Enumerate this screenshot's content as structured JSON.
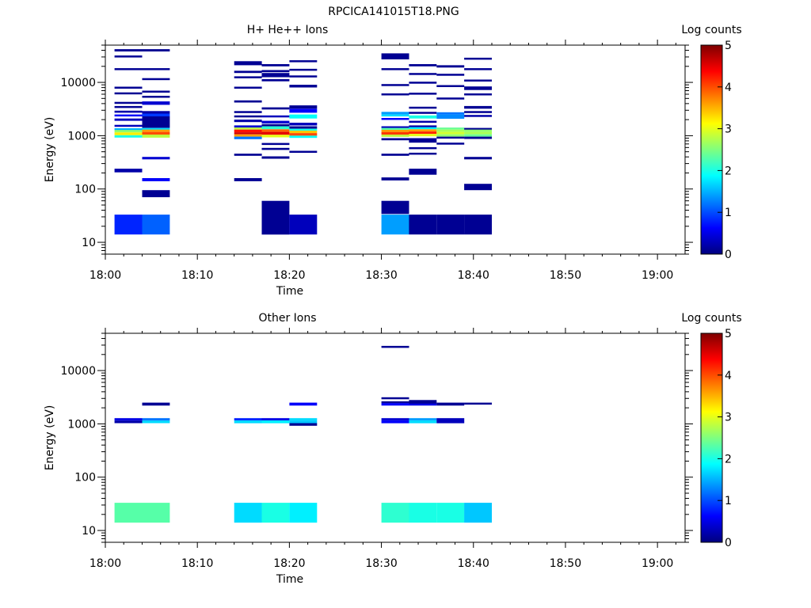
{
  "title": "RPCICA141015T18.PNG",
  "colormap": {
    "stops": [
      "#00007f",
      "#0000ff",
      "#007fff",
      "#00ffff",
      "#7fff7f",
      "#ffff00",
      "#ff7f00",
      "#ff0000",
      "#7f0000"
    ]
  },
  "chart_data": [
    {
      "type": "heatmap",
      "title": "H+ He++ Ions",
      "xlabel": "Time",
      "ylabel": "Energy (eV)",
      "xlim": [
        "18:00",
        "19:03"
      ],
      "ylim": [
        6,
        50000
      ],
      "yscale": "log",
      "x_ticks": [
        "18:00",
        "18:10",
        "18:20",
        "18:30",
        "18:40",
        "18:50",
        "19:00"
      ],
      "y_ticks": [
        "10",
        "100",
        "1000",
        "10000"
      ],
      "colorbar": {
        "label": "Log counts",
        "range": [
          0,
          5
        ],
        "ticks": [
          "0",
          "1",
          "2",
          "3",
          "4",
          "5"
        ]
      },
      "time_bins": [
        [
          "18:01",
          "18:04"
        ],
        [
          "18:04",
          "18:07"
        ],
        [
          "18:14",
          "18:17"
        ],
        [
          "18:17",
          "18:20"
        ],
        [
          "18:20",
          "18:23"
        ],
        [
          "18:30",
          "18:33"
        ],
        [
          "18:33",
          "18:36"
        ],
        [
          "18:36",
          "18:39"
        ],
        [
          "18:39",
          "18:42"
        ]
      ],
      "cells": [
        [
          0,
          38000,
          42000,
          0.1
        ],
        [
          0,
          30000,
          32000,
          0.1
        ],
        [
          0,
          17000,
          18500,
          0.1
        ],
        [
          0,
          7700,
          8300,
          0.1
        ],
        [
          0,
          6000,
          6500,
          0.1
        ],
        [
          0,
          4000,
          4300,
          0.1
        ],
        [
          0,
          3300,
          3600,
          0.1
        ],
        [
          0,
          2700,
          2950,
          0.2
        ],
        [
          0,
          2300,
          2500,
          0.6
        ],
        [
          0,
          1900,
          2100,
          0.3
        ],
        [
          0,
          1500,
          1600,
          0.3
        ],
        [
          0,
          1280,
          1380,
          1.5
        ],
        [
          0,
          1150,
          1280,
          2.6
        ],
        [
          0,
          1020,
          1150,
          3.2
        ],
        [
          0,
          920,
          1020,
          2.0
        ],
        [
          0,
          205,
          240,
          0.2
        ],
        [
          0,
          14,
          33,
          0.8
        ],
        [
          1,
          38000,
          42000,
          0.1
        ],
        [
          1,
          17000,
          18500,
          0.1
        ],
        [
          1,
          11000,
          12000,
          0.1
        ],
        [
          1,
          6500,
          7000,
          0.1
        ],
        [
          1,
          5200,
          5600,
          0.1
        ],
        [
          1,
          3800,
          4400,
          0.4
        ],
        [
          1,
          2600,
          2900,
          0.2
        ],
        [
          1,
          2300,
          2600,
          0.9
        ],
        [
          1,
          1400,
          2300,
          0.1
        ],
        [
          1,
          1300,
          1400,
          1.7
        ],
        [
          1,
          1180,
          1300,
          3.6
        ],
        [
          1,
          1050,
          1180,
          4.0
        ],
        [
          1,
          920,
          1050,
          2.8
        ],
        [
          1,
          360,
          400,
          0.4
        ],
        [
          1,
          140,
          160,
          0.6
        ],
        [
          1,
          70,
          95,
          0.1
        ],
        [
          1,
          14,
          33,
          1.1
        ],
        [
          2,
          21000,
          25000,
          0.1
        ],
        [
          2,
          15000,
          16500,
          0.1
        ],
        [
          2,
          12000,
          13000,
          0.1
        ],
        [
          2,
          7800,
          8300,
          0.1
        ],
        [
          2,
          4200,
          4600,
          0.1
        ],
        [
          2,
          2700,
          2900,
          0.1
        ],
        [
          2,
          2200,
          2400,
          0.1
        ],
        [
          2,
          1800,
          2000,
          0.2
        ],
        [
          2,
          1420,
          1560,
          0.4
        ],
        [
          2,
          1300,
          1420,
          2.8
        ],
        [
          2,
          1160,
          1300,
          4.3
        ],
        [
          2,
          1060,
          1160,
          4.6
        ],
        [
          2,
          960,
          1060,
          3.6
        ],
        [
          2,
          860,
          960,
          1.2
        ],
        [
          2,
          420,
          460,
          0.1
        ],
        [
          2,
          140,
          160,
          0.1
        ],
        [
          3,
          20000,
          22000,
          0.1
        ],
        [
          3,
          15500,
          17000,
          0.1
        ],
        [
          3,
          12500,
          15000,
          0.1
        ],
        [
          3,
          10500,
          11500,
          0.1
        ],
        [
          3,
          3100,
          3400,
          0.1
        ],
        [
          3,
          2200,
          2400,
          0.3
        ],
        [
          3,
          1700,
          1900,
          0.4
        ],
        [
          3,
          1500,
          1650,
          0.1
        ],
        [
          3,
          1320,
          1500,
          2.1
        ],
        [
          3,
          1180,
          1320,
          3.9
        ],
        [
          3,
          1040,
          1180,
          4.5
        ],
        [
          3,
          930,
          1040,
          3.0
        ],
        [
          3,
          670,
          730,
          0.1
        ],
        [
          3,
          540,
          590,
          0.1
        ],
        [
          3,
          370,
          410,
          0.1
        ],
        [
          3,
          14,
          60,
          0.1
        ],
        [
          4,
          24000,
          26000,
          0.1
        ],
        [
          4,
          16500,
          18000,
          0.1
        ],
        [
          4,
          12500,
          13500,
          0.1
        ],
        [
          4,
          8000,
          9000,
          0.1
        ],
        [
          4,
          3200,
          3700,
          0.1
        ],
        [
          4,
          2700,
          3200,
          0.6
        ],
        [
          4,
          2100,
          2500,
          1.9
        ],
        [
          4,
          1550,
          1750,
          0.3
        ],
        [
          4,
          1350,
          1500,
          0.1
        ],
        [
          4,
          1240,
          1350,
          2.0
        ],
        [
          4,
          1120,
          1240,
          3.4
        ],
        [
          4,
          1000,
          1120,
          4.0
        ],
        [
          4,
          910,
          1000,
          1.9
        ],
        [
          4,
          480,
          520,
          0.1
        ],
        [
          4,
          14,
          33,
          0.3
        ],
        [
          5,
          27000,
          35000,
          0.1
        ],
        [
          5,
          17000,
          18500,
          0.1
        ],
        [
          5,
          8700,
          9300,
          0.1
        ],
        [
          5,
          5800,
          6200,
          0.1
        ],
        [
          5,
          2500,
          2800,
          1.4
        ],
        [
          5,
          2300,
          2500,
          1.7
        ],
        [
          5,
          2000,
          2150,
          0.6
        ],
        [
          5,
          1400,
          1500,
          0.3
        ],
        [
          5,
          1290,
          1400,
          2.3
        ],
        [
          5,
          1170,
          1290,
          3.6
        ],
        [
          5,
          1050,
          1170,
          4.1
        ],
        [
          5,
          950,
          1050,
          2.8
        ],
        [
          5,
          820,
          900,
          0.1
        ],
        [
          5,
          420,
          460,
          0.1
        ],
        [
          5,
          145,
          165,
          0.1
        ],
        [
          5,
          34,
          60,
          0.1
        ],
        [
          5,
          14,
          33,
          1.4
        ],
        [
          6,
          20000,
          22000,
          0.1
        ],
        [
          6,
          14000,
          15000,
          0.1
        ],
        [
          6,
          9700,
          10300,
          0.1
        ],
        [
          6,
          6000,
          6400,
          0.1
        ],
        [
          6,
          3300,
          3500,
          0.1
        ],
        [
          6,
          2600,
          2800,
          0.1
        ],
        [
          6,
          2100,
          2400,
          2.0
        ],
        [
          6,
          1750,
          1900,
          0.2
        ],
        [
          6,
          1440,
          1560,
          0.2
        ],
        [
          6,
          1320,
          1440,
          1.8
        ],
        [
          6,
          1200,
          1320,
          3.6
        ],
        [
          6,
          1080,
          1200,
          4.2
        ],
        [
          6,
          970,
          1080,
          3.0
        ],
        [
          6,
          740,
          900,
          0.1
        ],
        [
          6,
          560,
          610,
          0.1
        ],
        [
          6,
          440,
          480,
          0.1
        ],
        [
          6,
          185,
          240,
          0.1
        ],
        [
          6,
          14,
          33,
          0.1
        ],
        [
          7,
          19000,
          21000,
          0.1
        ],
        [
          7,
          13500,
          14500,
          0.1
        ],
        [
          7,
          8300,
          8900,
          0.1
        ],
        [
          7,
          4800,
          5200,
          0.1
        ],
        [
          7,
          2500,
          2750,
          1.2
        ],
        [
          7,
          2080,
          2500,
          1.3
        ],
        [
          7,
          1300,
          1420,
          2.4
        ],
        [
          7,
          1180,
          1300,
          2.7
        ],
        [
          7,
          1060,
          1180,
          2.9
        ],
        [
          7,
          960,
          1060,
          2.6
        ],
        [
          7,
          880,
          960,
          0.1
        ],
        [
          7,
          690,
          740,
          0.1
        ],
        [
          7,
          14,
          33,
          0.1
        ],
        [
          8,
          27000,
          29000,
          0.1
        ],
        [
          8,
          17500,
          18500,
          0.1
        ],
        [
          8,
          10500,
          11300,
          0.1
        ],
        [
          8,
          7200,
          8400,
          0.1
        ],
        [
          8,
          5800,
          6200,
          0.1
        ],
        [
          8,
          3200,
          3600,
          0.1
        ],
        [
          8,
          2700,
          2900,
          0.1
        ],
        [
          8,
          2250,
          2450,
          0.2
        ],
        [
          8,
          1300,
          1400,
          0.1
        ],
        [
          8,
          1180,
          1300,
          2.6
        ],
        [
          8,
          1060,
          1180,
          2.7
        ],
        [
          8,
          960,
          1060,
          2.4
        ],
        [
          8,
          870,
          960,
          0.1
        ],
        [
          8,
          360,
          400,
          0.1
        ],
        [
          8,
          95,
          125,
          0.1
        ],
        [
          8,
          14,
          33,
          0.1
        ]
      ]
    },
    {
      "type": "heatmap",
      "title": "Other Ions",
      "xlabel": "Time",
      "ylabel": "Energy (eV)",
      "xlim": [
        "18:00",
        "19:03"
      ],
      "ylim": [
        6,
        50000
      ],
      "yscale": "log",
      "x_ticks": [
        "18:00",
        "18:10",
        "18:20",
        "18:30",
        "18:40",
        "18:50",
        "19:00"
      ],
      "y_ticks": [
        "10",
        "100",
        "1000",
        "10000"
      ],
      "colorbar": {
        "label": "Log counts",
        "range": [
          0,
          5
        ],
        "ticks": [
          "0",
          "1",
          "2",
          "3",
          "4",
          "5"
        ]
      },
      "time_bins": [
        [
          "18:01",
          "18:04"
        ],
        [
          "18:04",
          "18:07"
        ],
        [
          "18:14",
          "18:17"
        ],
        [
          "18:17",
          "18:20"
        ],
        [
          "18:20",
          "18:23"
        ],
        [
          "18:30",
          "18:33"
        ],
        [
          "18:33",
          "18:36"
        ],
        [
          "18:36",
          "18:39"
        ],
        [
          "18:39",
          "18:42"
        ]
      ],
      "cells": [
        [
          0,
          1150,
          1280,
          0.5
        ],
        [
          0,
          1030,
          1150,
          0.2
        ],
        [
          0,
          14,
          33,
          2.3
        ],
        [
          1,
          2200,
          2500,
          0.1
        ],
        [
          1,
          1150,
          1280,
          1.2
        ],
        [
          1,
          1030,
          1150,
          1.7
        ],
        [
          1,
          14,
          33,
          2.3
        ],
        [
          2,
          1160,
          1280,
          0.8
        ],
        [
          2,
          1030,
          1160,
          1.7
        ],
        [
          2,
          14,
          33,
          1.7
        ],
        [
          3,
          1160,
          1280,
          0.5
        ],
        [
          3,
          1030,
          1160,
          1.8
        ],
        [
          3,
          14,
          33,
          2.0
        ],
        [
          4,
          2200,
          2500,
          0.6
        ],
        [
          4,
          1160,
          1280,
          1.7
        ],
        [
          4,
          1030,
          1160,
          1.6
        ],
        [
          4,
          920,
          1030,
          0.1
        ],
        [
          4,
          14,
          33,
          1.8
        ],
        [
          5,
          27000,
          29000,
          0.1
        ],
        [
          5,
          2900,
          3150,
          0.1
        ],
        [
          5,
          2450,
          2650,
          0.1
        ],
        [
          5,
          2200,
          2450,
          0.6
        ],
        [
          5,
          1160,
          1280,
          0.4
        ],
        [
          5,
          1030,
          1160,
          0.6
        ],
        [
          5,
          14,
          33,
          2.1
        ],
        [
          6,
          2600,
          2800,
          0.1
        ],
        [
          6,
          2400,
          2600,
          0.1
        ],
        [
          6,
          2200,
          2400,
          0.5
        ],
        [
          6,
          1160,
          1280,
          1.4
        ],
        [
          6,
          1030,
          1160,
          1.7
        ],
        [
          6,
          14,
          33,
          2.0
        ],
        [
          7,
          2200,
          2500,
          0.1
        ],
        [
          7,
          1030,
          1280,
          0.3
        ],
        [
          7,
          14,
          33,
          2.0
        ],
        [
          8,
          2350,
          2500,
          0.1
        ],
        [
          8,
          14,
          33,
          1.6
        ]
      ]
    }
  ]
}
